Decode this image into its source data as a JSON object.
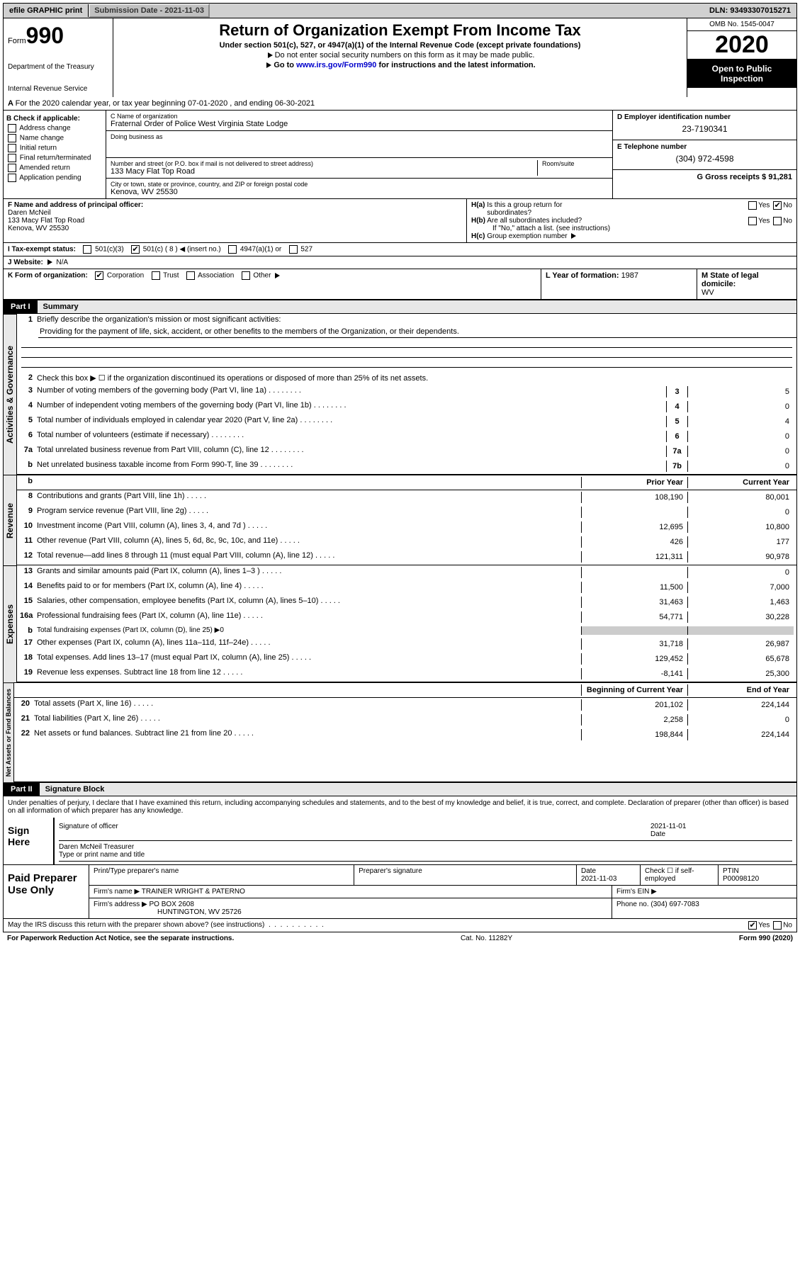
{
  "topbar": {
    "efile": "efile GRAPHIC print",
    "submission_label": "Submission Date - ",
    "submission_date": "2021-11-03",
    "dln_label": "DLN: ",
    "dln": "93493307015271"
  },
  "header": {
    "form_label": "Form",
    "form_num": "990",
    "dept1": "Department of the Treasury",
    "dept2": "Internal Revenue Service",
    "title": "Return of Organization Exempt From Income Tax",
    "sub1": "Under section 501(c), 527, or 4947(a)(1) of the Internal Revenue Code (except private foundations)",
    "sub2": "Do not enter social security numbers on this form as it may be made public.",
    "sub3_pre": "Go to ",
    "sub3_link": "www.irs.gov/Form990",
    "sub3_post": " for instructions and the latest information.",
    "omb": "OMB No. 1545-0047",
    "year": "2020",
    "inspection": "Open to Public Inspection"
  },
  "rowA": {
    "text": "For the 2020 calendar year, or tax year beginning 07-01-2020    , and ending 06-30-2021"
  },
  "sectionB": {
    "b_label": "B Check if applicable:",
    "address_change": "Address change",
    "name_change": "Name change",
    "initial_return": "Initial return",
    "final_return": "Final return/terminated",
    "amended_return": "Amended return",
    "application_pending": "Application pending",
    "c_label": "C Name of organization",
    "org_name": "Fraternal Order of Police West Virginia State Lodge",
    "dba_label": "Doing business as",
    "dba": "",
    "addr_label": "Number and street (or P.O. box if mail is not delivered to street address)",
    "room_label": "Room/suite",
    "addr": "133 Macy Flat Top Road",
    "city_label": "City or town, state or province, country, and ZIP or foreign postal code",
    "city": "Kenova, WV  25530",
    "d_label": "D Employer identification number",
    "ein": "23-7190341",
    "e_label": "E Telephone number",
    "phone": "(304) 972-4598",
    "g_label": "G Gross receipts $ ",
    "gross": "91,281"
  },
  "sectionF": {
    "f_label": "F  Name and address of principal officer:",
    "name": "Daren McNeil",
    "addr1": "133 Macy Flat Top Road",
    "addr2": "Kenova, WV  25530",
    "ha_label": "H(a)  Is this a group return for subordinates?",
    "hb_label": "H(b)  Are all subordinates included?",
    "hb_note": "If \"No,\" attach a list. (see instructions)",
    "hc_label": "H(c)  Group exemption number",
    "yes": "Yes",
    "no": "No"
  },
  "sectionI": {
    "i_label": "I  Tax-exempt status:",
    "opt1": "501(c)(3)",
    "opt2": "501(c) ( 8 )",
    "opt2_note": "(insert no.)",
    "opt3": "4947(a)(1) or",
    "opt4": "527"
  },
  "sectionJ": {
    "j_label": "J  Website:",
    "website": "N/A"
  },
  "sectionK": {
    "k_label": "K Form of organization:",
    "corp": "Corporation",
    "trust": "Trust",
    "assoc": "Association",
    "other": "Other",
    "l_label": "L Year of formation: ",
    "l_val": "1987",
    "m_label": "M State of legal domicile:",
    "m_val": "WV"
  },
  "part1": {
    "label": "Part I",
    "title": "Summary",
    "side1": "Activities & Governance",
    "side2": "Revenue",
    "side3": "Expenses",
    "side4": "Net Assets or Fund Balances",
    "line1_label": "Briefly describe the organization's mission or most significant activities:",
    "mission": "Providing for the payment of life, sick, accident, or other benefits to the members of the Organization, or their dependents.",
    "line2": "Check this box ▶ ☐  if the organization discontinued its operations or disposed of more than 25% of its net assets.",
    "lines": [
      {
        "num": "3",
        "desc": "Number of voting members of the governing body (Part VI, line 1a)",
        "col": "3",
        "val": "5"
      },
      {
        "num": "4",
        "desc": "Number of independent voting members of the governing body (Part VI, line 1b)",
        "col": "4",
        "val": "0"
      },
      {
        "num": "5",
        "desc": "Total number of individuals employed in calendar year 2020 (Part V, line 2a)",
        "col": "5",
        "val": "4"
      },
      {
        "num": "6",
        "desc": "Total number of volunteers (estimate if necessary)",
        "col": "6",
        "val": "0"
      },
      {
        "num": "7a",
        "desc": "Total unrelated business revenue from Part VIII, column (C), line 12",
        "col": "7a",
        "val": "0"
      },
      {
        "num": "b",
        "desc": "Net unrelated business taxable income from Form 990-T, line 39",
        "col": "7b",
        "val": "0"
      }
    ],
    "hdr_prior": "Prior Year",
    "hdr_current": "Current Year",
    "revenue_lines": [
      {
        "num": "8",
        "desc": "Contributions and grants (Part VIII, line 1h)",
        "prior": "108,190",
        "current": "80,001"
      },
      {
        "num": "9",
        "desc": "Program service revenue (Part VIII, line 2g)",
        "prior": "",
        "current": "0"
      },
      {
        "num": "10",
        "desc": "Investment income (Part VIII, column (A), lines 3, 4, and 7d )",
        "prior": "12,695",
        "current": "10,800"
      },
      {
        "num": "11",
        "desc": "Other revenue (Part VIII, column (A), lines 5, 6d, 8c, 9c, 10c, and 11e)",
        "prior": "426",
        "current": "177"
      },
      {
        "num": "12",
        "desc": "Total revenue—add lines 8 through 11 (must equal Part VIII, column (A), line 12)",
        "prior": "121,311",
        "current": "90,978"
      }
    ],
    "expense_lines": [
      {
        "num": "13",
        "desc": "Grants and similar amounts paid (Part IX, column (A), lines 1–3 )",
        "prior": "",
        "current": "0"
      },
      {
        "num": "14",
        "desc": "Benefits paid to or for members (Part IX, column (A), line 4)",
        "prior": "11,500",
        "current": "7,000"
      },
      {
        "num": "15",
        "desc": "Salaries, other compensation, employee benefits (Part IX, column (A), lines 5–10)",
        "prior": "31,463",
        "current": "1,463"
      },
      {
        "num": "16a",
        "desc": "Professional fundraising fees (Part IX, column (A), line 11e)",
        "prior": "54,771",
        "current": "30,228"
      },
      {
        "num": "b",
        "desc": "Total fundraising expenses (Part IX, column (D), line 25) ▶0",
        "prior": null,
        "current": null
      },
      {
        "num": "17",
        "desc": "Other expenses (Part IX, column (A), lines 11a–11d, 11f–24e)",
        "prior": "31,718",
        "current": "26,987"
      },
      {
        "num": "18",
        "desc": "Total expenses. Add lines 13–17 (must equal Part IX, column (A), line 25)",
        "prior": "129,452",
        "current": "65,678"
      },
      {
        "num": "19",
        "desc": "Revenue less expenses. Subtract line 18 from line 12",
        "prior": "-8,141",
        "current": "25,300"
      }
    ],
    "hdr_beg": "Beginning of Current Year",
    "hdr_end": "End of Year",
    "net_lines": [
      {
        "num": "20",
        "desc": "Total assets (Part X, line 16)",
        "prior": "201,102",
        "current": "224,144"
      },
      {
        "num": "21",
        "desc": "Total liabilities (Part X, line 26)",
        "prior": "2,258",
        "current": "0"
      },
      {
        "num": "22",
        "desc": "Net assets or fund balances. Subtract line 21 from line 20",
        "prior": "198,844",
        "current": "224,144"
      }
    ]
  },
  "part2": {
    "label": "Part II",
    "title": "Signature Block",
    "declaration": "Under penalties of perjury, I declare that I have examined this return, including accompanying schedules and statements, and to the best of my knowledge and belief, it is true, correct, and complete. Declaration of preparer (other than officer) is based on all information of which preparer has any knowledge.",
    "sign_here": "Sign Here",
    "sig_officer": "Signature of officer",
    "sig_date_label": "Date",
    "sig_date": "2021-11-01",
    "officer_name": "Daren McNeil  Treasurer",
    "type_name": "Type or print name and title",
    "paid_label": "Paid Preparer Use Only",
    "print_name_label": "Print/Type preparer's name",
    "print_name": "",
    "prep_sig_label": "Preparer's signature",
    "prep_date_label": "Date",
    "prep_date": "2021-11-03",
    "self_emp": "Check ☐ if self-employed",
    "ptin_label": "PTIN",
    "ptin": "P00098120",
    "firm_name_label": "Firm's name     ▶",
    "firm_name": "TRAINER WRIGHT & PATERNO",
    "firm_ein_label": "Firm's EIN ▶",
    "firm_addr_label": "Firm's address ▶",
    "firm_addr1": "PO BOX 2608",
    "firm_addr2": "HUNTINGTON, WV  25726",
    "firm_phone_label": "Phone no. ",
    "firm_phone": "(304) 697-7083",
    "discuss": "May the IRS discuss this return with the preparer shown above? (see instructions)"
  },
  "footer": {
    "left": "For Paperwork Reduction Act Notice, see the separate instructions.",
    "mid": "Cat. No. 11282Y",
    "right": "Form 990 (2020)"
  }
}
